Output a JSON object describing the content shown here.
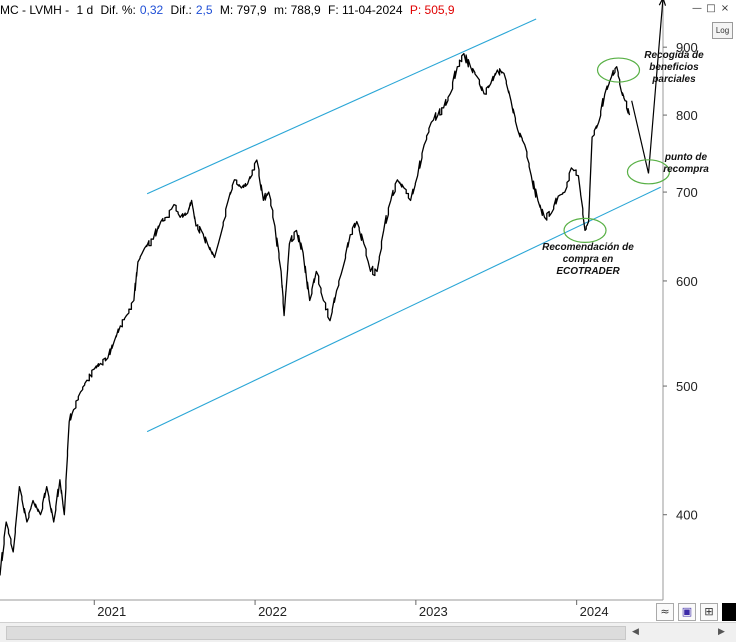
{
  "header": {
    "symbol": "MC - LVMH -",
    "period": "1 d",
    "dif_pct_label": "Dif. %:",
    "dif_pct_value": "0,32",
    "dif_label": "Dif.:",
    "dif_value": "2,5",
    "max_label": "M: 797,9",
    "min_label": "m: 788,9",
    "date_label": "F: 11-04-2024",
    "price_label": "P: 505,9"
  },
  "controls": {
    "log_label": "Log",
    "window_buttons": [
      "—",
      "□",
      "×"
    ],
    "scroll_left": "◀",
    "scroll_right": "▶",
    "icon_glyphs": [
      "≈",
      "▣",
      "⊞",
      "■"
    ]
  },
  "chart_data": {
    "type": "line",
    "y_scale": "log",
    "ylim": [
      345,
      950
    ],
    "yticks": [
      400,
      500,
      600,
      700,
      800,
      900
    ],
    "xticks": [
      "2021",
      "2022",
      "2023",
      "2024"
    ],
    "xrange": [
      "2020-06-01",
      "2024-07-15"
    ],
    "series": [
      {
        "points": [
          [
            "2020-06-01",
            360
          ],
          [
            "2020-06-15",
            395
          ],
          [
            "2020-07-01",
            375
          ],
          [
            "2020-07-15",
            420
          ],
          [
            "2020-08-01",
            395
          ],
          [
            "2020-08-15",
            410
          ],
          [
            "2020-09-01",
            400
          ],
          [
            "2020-09-15",
            420
          ],
          [
            "2020-10-01",
            395
          ],
          [
            "2020-10-15",
            425
          ],
          [
            "2020-10-25",
            400
          ],
          [
            "2020-11-05",
            470
          ],
          [
            "2020-11-15",
            480
          ],
          [
            "2020-12-01",
            495
          ],
          [
            "2020-12-15",
            505
          ],
          [
            "2021-01-01",
            515
          ],
          [
            "2021-01-15",
            520
          ],
          [
            "2021-02-01",
            525
          ],
          [
            "2021-02-15",
            540
          ],
          [
            "2021-03-01",
            555
          ],
          [
            "2021-03-15",
            565
          ],
          [
            "2021-04-01",
            580
          ],
          [
            "2021-04-10",
            620
          ],
          [
            "2021-04-25",
            635
          ],
          [
            "2021-05-15",
            645
          ],
          [
            "2021-06-01",
            665
          ],
          [
            "2021-06-15",
            670
          ],
          [
            "2021-07-01",
            685
          ],
          [
            "2021-07-15",
            670
          ],
          [
            "2021-08-01",
            675
          ],
          [
            "2021-08-10",
            690
          ],
          [
            "2021-08-20",
            660
          ],
          [
            "2021-09-01",
            655
          ],
          [
            "2021-09-15",
            640
          ],
          [
            "2021-10-01",
            625
          ],
          [
            "2021-10-15",
            650
          ],
          [
            "2021-11-01",
            690
          ],
          [
            "2021-11-15",
            715
          ],
          [
            "2021-12-01",
            705
          ],
          [
            "2021-12-15",
            710
          ],
          [
            "2022-01-05",
            740
          ],
          [
            "2022-01-20",
            690
          ],
          [
            "2022-02-01",
            700
          ],
          [
            "2022-02-15",
            660
          ],
          [
            "2022-03-01",
            610
          ],
          [
            "2022-03-08",
            565
          ],
          [
            "2022-03-20",
            640
          ],
          [
            "2022-04-05",
            655
          ],
          [
            "2022-04-20",
            630
          ],
          [
            "2022-05-05",
            580
          ],
          [
            "2022-05-20",
            610
          ],
          [
            "2022-06-05",
            580
          ],
          [
            "2022-06-20",
            560
          ],
          [
            "2022-07-05",
            590
          ],
          [
            "2022-07-20",
            615
          ],
          [
            "2022-08-05",
            650
          ],
          [
            "2022-08-20",
            665
          ],
          [
            "2022-09-05",
            640
          ],
          [
            "2022-09-20",
            610
          ],
          [
            "2022-10-05",
            610
          ],
          [
            "2022-10-20",
            655
          ],
          [
            "2022-11-05",
            690
          ],
          [
            "2022-11-20",
            715
          ],
          [
            "2022-12-05",
            705
          ],
          [
            "2022-12-20",
            690
          ],
          [
            "2023-01-05",
            720
          ],
          [
            "2023-01-20",
            760
          ],
          [
            "2023-02-05",
            790
          ],
          [
            "2023-02-20",
            800
          ],
          [
            "2023-03-05",
            810
          ],
          [
            "2023-03-20",
            830
          ],
          [
            "2023-04-05",
            870
          ],
          [
            "2023-04-20",
            890
          ],
          [
            "2023-05-05",
            870
          ],
          [
            "2023-05-20",
            855
          ],
          [
            "2023-06-05",
            830
          ],
          [
            "2023-06-20",
            845
          ],
          [
            "2023-07-05",
            865
          ],
          [
            "2023-07-20",
            860
          ],
          [
            "2023-08-05",
            820
          ],
          [
            "2023-08-20",
            780
          ],
          [
            "2023-09-05",
            760
          ],
          [
            "2023-09-20",
            720
          ],
          [
            "2023-10-05",
            690
          ],
          [
            "2023-10-20",
            670
          ],
          [
            "2023-11-05",
            675
          ],
          [
            "2023-11-20",
            695
          ],
          [
            "2023-12-05",
            700
          ],
          [
            "2023-12-20",
            730
          ],
          [
            "2024-01-05",
            720
          ],
          [
            "2024-01-20",
            655
          ],
          [
            "2024-01-28",
            665
          ],
          [
            "2024-02-05",
            770
          ],
          [
            "2024-02-20",
            790
          ],
          [
            "2024-03-05",
            830
          ],
          [
            "2024-03-20",
            855
          ],
          [
            "2024-04-01",
            870
          ],
          [
            "2024-04-11",
            835
          ],
          [
            "2024-04-20",
            820
          ],
          [
            "2024-04-30",
            800
          ]
        ]
      }
    ],
    "channel_lines": [
      {
        "name": "upper",
        "from": [
          "2021-05-01",
          698
        ],
        "to": [
          "2023-10-01",
          945
        ]
      },
      {
        "name": "lower",
        "from": [
          "2021-05-01",
          462
        ],
        "to": [
          "2024-07-10",
          706
        ]
      }
    ],
    "projection": {
      "path": [
        [
          "2024-05-05",
          820
        ],
        [
          "2024-06-12",
          723
        ],
        [
          "2024-07-15",
          980
        ]
      ]
    },
    "highlight_circles": [
      {
        "date": "2024-04-05",
        "value": 865
      },
      {
        "date": "2024-06-12",
        "value": 725
      },
      {
        "date": "2024-01-20",
        "value": 655
      }
    ],
    "annotations": [
      {
        "lines": [
          "Recogida de",
          "beneficios",
          "parciales"
        ]
      },
      {
        "lines": [
          "punto de",
          "recompra"
        ]
      },
      {
        "lines": [
          "Recomendación de",
          "compra en",
          "ECOTRADER"
        ]
      }
    ]
  }
}
